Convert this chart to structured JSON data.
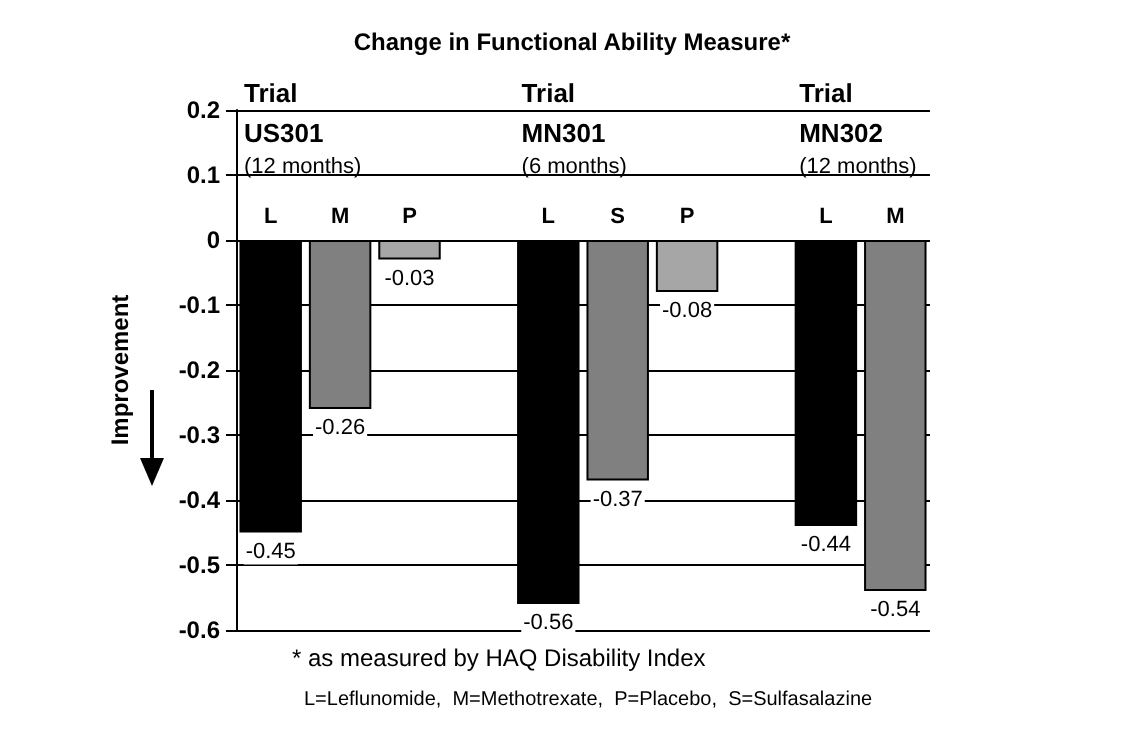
{
  "chart_data": {
    "type": "bar",
    "title": "Change in Functional Ability Measure*",
    "ylabel": "Improvement",
    "categories": [
      "L",
      "M",
      "P",
      null,
      "L",
      "S",
      "P",
      null,
      "L",
      "M"
    ],
    "values": [
      -0.45,
      -0.26,
      -0.03,
      null,
      -0.56,
      -0.37,
      -0.08,
      null,
      -0.44,
      -0.54
    ],
    "colors": [
      "#000000",
      "#808080",
      "#a6a6a6",
      null,
      "#000000",
      "#808080",
      "#a6a6a6",
      null,
      "#000000",
      "#808080"
    ],
    "ylim": [
      -0.6,
      0.2
    ],
    "yticks": [
      0.2,
      0.1,
      0,
      -0.1,
      -0.2,
      -0.3,
      -0.4,
      -0.5,
      -0.6
    ],
    "grid": "y",
    "data_labels": true,
    "annotations": [
      "Trial\nUS301\n(12 months)",
      "Trial\nMN301\n(6 months)",
      "Trial\nMN302\n(12 months)",
      "* as measured by HAQ Disability Index",
      "L=Leflunomide,  M=Methotrexate,  P=Placebo,  S=Sulfasalazine"
    ]
  }
}
